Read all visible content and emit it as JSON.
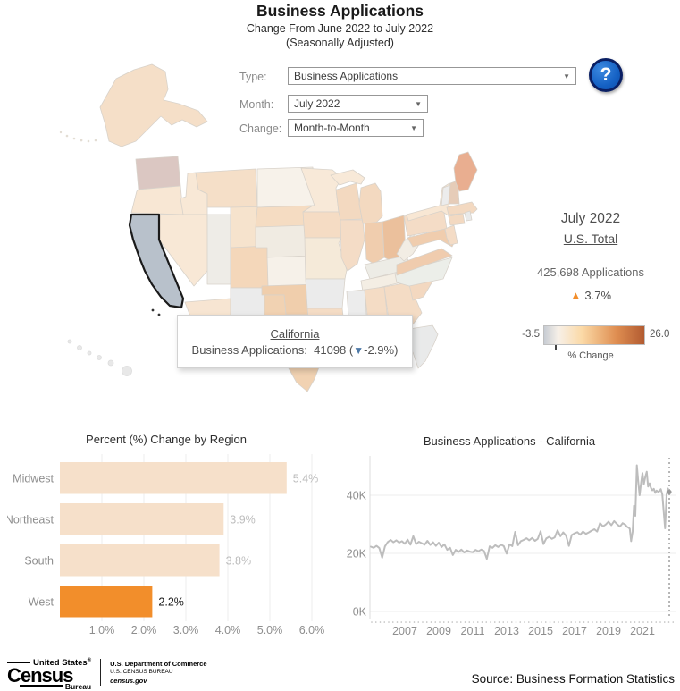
{
  "header": {
    "title": "Business Applications",
    "subtitle_line1": "Change From June 2022 to July 2022",
    "subtitle_line2": "(Seasonally Adjusted)"
  },
  "icons": {
    "up_triangle": "▲",
    "down_triangle": "▼",
    "caret": "▼",
    "help": "?"
  },
  "controls": {
    "type": {
      "label": "Type:",
      "value": "Business Applications"
    },
    "month": {
      "label": "Month:",
      "value": "July 2022"
    },
    "change": {
      "label": "Change:",
      "value": "Month-to-Month"
    }
  },
  "tooltip": {
    "state": "California",
    "metric_label": "Business Applications:",
    "value": "41098",
    "open_paren": "(",
    "change": "-2.9%",
    "close_paren": ")"
  },
  "summary": {
    "period": "July 2022",
    "total_link": "U.S. Total",
    "applications": "425,698 Applications",
    "change": "3.7%"
  },
  "legend": {
    "min": "-3.5",
    "max": "26.0",
    "label": "% Change",
    "gradient": [
      "#c7ccd3",
      "#f7f0e8",
      "#fbd9a6",
      "#df8e51",
      "#b25b31"
    ]
  },
  "colors": {
    "accent_orange": "#f28e2b",
    "down_blue": "#4e79a7",
    "selected_state_fill": "#b8c1cb",
    "line_gray": "#bdbdbd"
  },
  "chart_data": [
    {
      "type": "bar",
      "orientation": "horizontal",
      "title": "Percent (%) Change by Region",
      "categories": [
        "Midwest",
        "Northeast",
        "South",
        "West"
      ],
      "values": [
        5.4,
        3.9,
        3.8,
        2.2
      ],
      "value_labels": [
        "5.4%",
        "3.9%",
        "3.8%",
        "2.2%"
      ],
      "highlight_index": 3,
      "xlim": [
        0,
        6.6
      ],
      "xticks": [
        {
          "v": 1,
          "label": "1.0%"
        },
        {
          "v": 2,
          "label": "2.0%"
        },
        {
          "v": 3,
          "label": "3.0%"
        },
        {
          "v": 4,
          "label": "4.0%"
        },
        {
          "v": 5,
          "label": "5.0%"
        },
        {
          "v": 6,
          "label": "6.0%"
        }
      ],
      "bar_color": "#f6e0ca",
      "highlight_color": "#f28e2b",
      "value_label_color": "#bdbdbd",
      "highlight_label_color": "#1a1a1a"
    },
    {
      "type": "line",
      "title": "Business Applications - California",
      "xlabel_unit": "year",
      "ylabel_unit": "thousands of applications",
      "xlim": [
        2004.7,
        2022.9
      ],
      "ylim": [
        0,
        53
      ],
      "xticks": [
        2007,
        2009,
        2011,
        2013,
        2015,
        2017,
        2019,
        2021
      ],
      "yticks": [
        {
          "v": 0,
          "label": "0K"
        },
        {
          "v": 20,
          "label": "20K"
        },
        {
          "v": 40,
          "label": "40K"
        }
      ],
      "x": [
        2005.0,
        2005.17,
        2005.33,
        2005.5,
        2005.67,
        2005.83,
        2006.0,
        2006.17,
        2006.33,
        2006.5,
        2006.67,
        2006.83,
        2007.0,
        2007.17,
        2007.33,
        2007.5,
        2007.67,
        2007.83,
        2008.0,
        2008.17,
        2008.33,
        2008.5,
        2008.67,
        2008.83,
        2009.0,
        2009.17,
        2009.33,
        2009.5,
        2009.67,
        2009.83,
        2010.0,
        2010.17,
        2010.33,
        2010.5,
        2010.67,
        2010.83,
        2011.0,
        2011.17,
        2011.33,
        2011.5,
        2011.67,
        2011.83,
        2012.0,
        2012.17,
        2012.33,
        2012.5,
        2012.67,
        2012.83,
        2013.0,
        2013.17,
        2013.33,
        2013.5,
        2013.67,
        2013.83,
        2014.0,
        2014.17,
        2014.33,
        2014.5,
        2014.67,
        2014.83,
        2015.0,
        2015.17,
        2015.33,
        2015.5,
        2015.67,
        2015.83,
        2016.0,
        2016.17,
        2016.33,
        2016.5,
        2016.67,
        2016.83,
        2017.0,
        2017.17,
        2017.33,
        2017.5,
        2017.67,
        2017.83,
        2018.0,
        2018.17,
        2018.33,
        2018.5,
        2018.67,
        2018.83,
        2019.0,
        2019.17,
        2019.33,
        2019.5,
        2019.67,
        2019.83,
        2020.0,
        2020.08,
        2020.17,
        2020.25,
        2020.33,
        2020.42,
        2020.5,
        2020.58,
        2020.67,
        2020.75,
        2020.83,
        2020.92,
        2021.0,
        2021.08,
        2021.17,
        2021.25,
        2021.33,
        2021.42,
        2021.5,
        2021.58,
        2021.67,
        2021.75,
        2021.83,
        2021.92,
        2022.0,
        2022.08,
        2022.17,
        2022.25,
        2022.33,
        2022.42,
        2022.5,
        2022.58
      ],
      "y": [
        22.3,
        21.9,
        22.6,
        21.8,
        18.5,
        22.4,
        23.9,
        24.6,
        23.8,
        24.5,
        23.7,
        24.2,
        23.3,
        24.7,
        23.0,
        25.9,
        23.2,
        24.0,
        23.5,
        23.0,
        24.3,
        22.9,
        23.8,
        22.6,
        23.7,
        22.2,
        23.1,
        21.2,
        21.9,
        19.4,
        21.2,
        20.5,
        21.3,
        20.3,
        21.0,
        20.6,
        20.4,
        21.2,
        20.7,
        21.3,
        20.8,
        18.1,
        22.4,
        21.9,
        22.8,
        22.2,
        23.0,
        22.5,
        19.9,
        23.1,
        22.5,
        27.4,
        22.8,
        24.2,
        24.6,
        25.2,
        24.5,
        25.3,
        24.3,
        25.0,
        27.6,
        23.2,
        25.1,
        25.7,
        25.0,
        25.5,
        27.9,
        25.9,
        27.2,
        26.1,
        22.6,
        26.3,
        26.9,
        27.3,
        26.4,
        27.5,
        26.7,
        27.2,
        27.8,
        28.3,
        27.5,
        30.4,
        29.3,
        29.9,
        30.9,
        29.7,
        31.1,
        30.1,
        29.2,
        30.4,
        29.8,
        29.2,
        28.9,
        28.5,
        24.2,
        27.5,
        36.4,
        32.9,
        50.3,
        44.6,
        40.0,
        44.4,
        47.6,
        43.8,
        46.3,
        48.1,
        43.0,
        44.1,
        42.5,
        41.7,
        42.2,
        40.8,
        41.6,
        41.2,
        41.4,
        42.1,
        40.3,
        34.2,
        28.6,
        40.2,
        42.3,
        41.1
      ],
      "marker_x": 2022.58,
      "marker_y": 41.1,
      "line_color": "#bdbdbd"
    }
  ],
  "footer": {
    "logo_top": "United States",
    "logo_reg": "®",
    "logo_main": "Census",
    "logo_sub": "Bureau",
    "dept_line1": "U.S. Department of Commerce",
    "dept_line2": "U.S. CENSUS BUREAU",
    "dept_line3": "census.gov",
    "source": "Source: Business Formation Statistics"
  }
}
